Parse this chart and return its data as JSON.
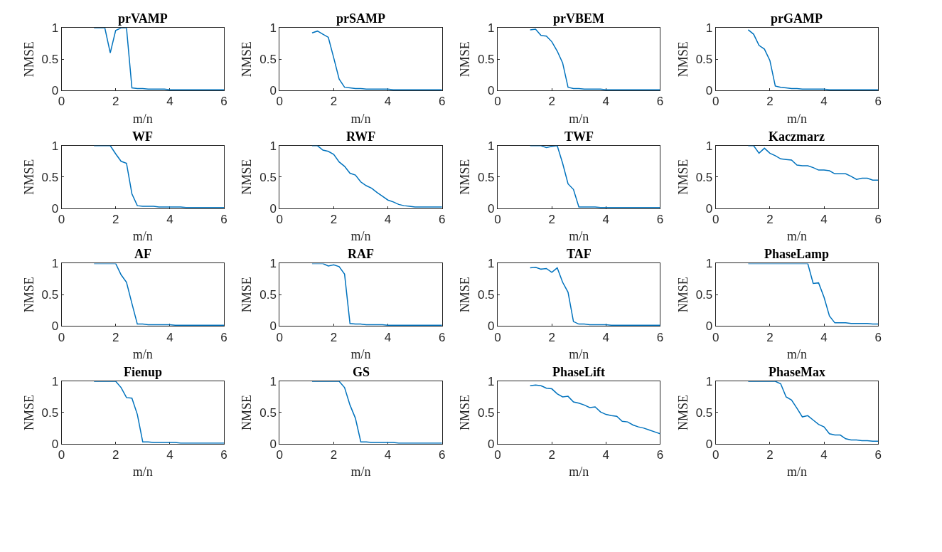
{
  "chart_data": [
    {
      "type": "line",
      "title": "prVAMP",
      "xlabel": "m/n",
      "ylabel": "NMSE",
      "x": [
        1.2,
        1.4,
        1.6,
        1.8,
        2.0,
        2.2,
        2.4,
        2.6,
        2.8,
        3.0,
        3.2,
        3.4,
        3.6,
        3.8,
        4.0,
        4.2,
        4.4,
        4.6,
        4.8,
        5.0,
        5.2,
        5.4,
        5.6,
        5.8,
        6.0
      ],
      "series": [
        {
          "color": "#0072bd",
          "values": [
            1,
            1,
            1,
            0.6,
            0.96,
            1,
            1,
            0.04,
            0.03,
            0.03,
            0.02,
            0.02,
            0.02,
            0.02,
            0.01,
            0.01,
            0.01,
            0.01,
            0.01,
            0.01,
            0.01,
            0.01,
            0.01,
            0.01,
            0.01
          ]
        }
      ],
      "xlim": [
        0,
        6
      ],
      "xticks": [
        0,
        2,
        4,
        6
      ],
      "ylim": [
        0,
        1
      ],
      "yticks": [
        0,
        0.5,
        1
      ]
    },
    {
      "type": "line",
      "title": "prSAMP",
      "xlabel": "m/n",
      "ylabel": "NMSE",
      "x": [
        1.2,
        1.4,
        1.6,
        1.8,
        2.0,
        2.2,
        2.4,
        2.6,
        2.8,
        3.0,
        3.2,
        3.4,
        3.6,
        3.8,
        4.0,
        4.2,
        4.4,
        4.6,
        4.8,
        5.0,
        5.2,
        5.4,
        5.6,
        5.8,
        6.0
      ],
      "series": [
        {
          "color": "#0072bd",
          "values": [
            0.92,
            0.95,
            0.9,
            0.85,
            0.52,
            0.18,
            0.05,
            0.04,
            0.03,
            0.03,
            0.02,
            0.02,
            0.02,
            0.02,
            0.02,
            0.01,
            0.01,
            0.01,
            0.01,
            0.01,
            0.01,
            0.01,
            0.01,
            0.01,
            0.01
          ]
        }
      ],
      "xlim": [
        0,
        6
      ],
      "xticks": [
        0,
        2,
        4,
        6
      ],
      "ylim": [
        0,
        1
      ],
      "yticks": [
        0,
        0.5,
        1
      ]
    },
    {
      "type": "line",
      "title": "prVBEM",
      "xlabel": "m/n",
      "ylabel": "NMSE",
      "x": [
        1.2,
        1.4,
        1.6,
        1.8,
        2.0,
        2.2,
        2.4,
        2.6,
        2.8,
        3.0,
        3.2,
        3.4,
        3.6,
        3.8,
        4.0,
        4.2,
        4.4,
        4.6,
        4.8,
        5.0,
        5.2,
        5.4,
        5.6,
        5.8,
        6.0
      ],
      "series": [
        {
          "color": "#0072bd",
          "values": [
            0.97,
            0.98,
            0.88,
            0.87,
            0.78,
            0.63,
            0.44,
            0.05,
            0.03,
            0.03,
            0.02,
            0.02,
            0.02,
            0.02,
            0.01,
            0.01,
            0.01,
            0.01,
            0.01,
            0.01,
            0.01,
            0.01,
            0.01,
            0.01,
            0.01
          ]
        }
      ],
      "xlim": [
        0,
        6
      ],
      "xticks": [
        0,
        2,
        4,
        6
      ],
      "ylim": [
        0,
        1
      ],
      "yticks": [
        0,
        0.5,
        1
      ]
    },
    {
      "type": "line",
      "title": "prGAMP",
      "xlabel": "m/n",
      "ylabel": "NMSE",
      "x": [
        1.2,
        1.4,
        1.6,
        1.8,
        2.0,
        2.2,
        2.4,
        2.6,
        2.8,
        3.0,
        3.2,
        3.4,
        3.6,
        3.8,
        4.0,
        4.2,
        4.4,
        4.6,
        4.8,
        5.0,
        5.2,
        5.4,
        5.6,
        5.8,
        6.0
      ],
      "series": [
        {
          "color": "#0072bd",
          "values": [
            0.97,
            0.9,
            0.72,
            0.66,
            0.48,
            0.07,
            0.05,
            0.04,
            0.03,
            0.03,
            0.02,
            0.02,
            0.02,
            0.02,
            0.02,
            0.01,
            0.01,
            0.01,
            0.01,
            0.01,
            0.01,
            0.01,
            0.01,
            0.01,
            0.01
          ]
        }
      ],
      "xlim": [
        0,
        6
      ],
      "xticks": [
        0,
        2,
        4,
        6
      ],
      "ylim": [
        0,
        1
      ],
      "yticks": [
        0,
        0.5,
        1
      ]
    },
    {
      "type": "line",
      "title": "WF",
      "xlabel": "m/n",
      "ylabel": "NMSE",
      "x": [
        1.2,
        1.4,
        1.6,
        1.8,
        2.0,
        2.2,
        2.4,
        2.6,
        2.8,
        3.0,
        3.2,
        3.4,
        3.6,
        3.8,
        4.0,
        4.2,
        4.4,
        4.6,
        4.8,
        5.0,
        5.2,
        5.4,
        5.6,
        5.8,
        6.0
      ],
      "series": [
        {
          "color": "#0072bd",
          "values": [
            1,
            1,
            1,
            1,
            0.87,
            0.75,
            0.72,
            0.23,
            0.04,
            0.03,
            0.03,
            0.03,
            0.02,
            0.02,
            0.02,
            0.02,
            0.02,
            0.01,
            0.01,
            0.01,
            0.01,
            0.01,
            0.01,
            0.01,
            0.01
          ]
        }
      ],
      "xlim": [
        0,
        6
      ],
      "xticks": [
        0,
        2,
        4,
        6
      ],
      "ylim": [
        0,
        1
      ],
      "yticks": [
        0,
        0.5,
        1
      ]
    },
    {
      "type": "line",
      "title": "RWF",
      "xlabel": "m/n",
      "ylabel": "NMSE",
      "x": [
        1.2,
        1.4,
        1.6,
        1.8,
        2.0,
        2.2,
        2.4,
        2.6,
        2.8,
        3.0,
        3.2,
        3.4,
        3.6,
        3.8,
        4.0,
        4.2,
        4.4,
        4.6,
        4.8,
        5.0,
        5.2,
        5.4,
        5.6,
        5.8,
        6.0
      ],
      "series": [
        {
          "color": "#0072bd",
          "values": [
            1,
            1,
            0.93,
            0.91,
            0.86,
            0.74,
            0.67,
            0.56,
            0.53,
            0.42,
            0.36,
            0.32,
            0.25,
            0.19,
            0.13,
            0.1,
            0.06,
            0.04,
            0.03,
            0.02,
            0.02,
            0.02,
            0.02,
            0.02,
            0.02
          ]
        }
      ],
      "xlim": [
        0,
        6
      ],
      "xticks": [
        0,
        2,
        4,
        6
      ],
      "ylim": [
        0,
        1
      ],
      "yticks": [
        0,
        0.5,
        1
      ]
    },
    {
      "type": "line",
      "title": "TWF",
      "xlabel": "m/n",
      "ylabel": "NMSE",
      "x": [
        1.2,
        1.4,
        1.6,
        1.8,
        2.0,
        2.2,
        2.4,
        2.6,
        2.8,
        3.0,
        3.2,
        3.4,
        3.6,
        3.8,
        4.0,
        4.2,
        4.4,
        4.6,
        4.8,
        5.0,
        5.2,
        5.4,
        5.6,
        5.8,
        6.0
      ],
      "series": [
        {
          "color": "#0072bd",
          "values": [
            1,
            1,
            1,
            0.97,
            0.99,
            1,
            0.72,
            0.39,
            0.3,
            0.02,
            0.02,
            0.02,
            0.02,
            0.01,
            0.01,
            0.01,
            0.01,
            0.01,
            0.01,
            0.01,
            0.01,
            0.01,
            0.01,
            0.01,
            0.01
          ]
        }
      ],
      "xlim": [
        0,
        6
      ],
      "xticks": [
        0,
        2,
        4,
        6
      ],
      "ylim": [
        0,
        1
      ],
      "yticks": [
        0,
        0.5,
        1
      ]
    },
    {
      "type": "line",
      "title": "Kaczmarz",
      "xlabel": "m/n",
      "ylabel": "NMSE",
      "x": [
        1.2,
        1.4,
        1.6,
        1.8,
        2.0,
        2.2,
        2.4,
        2.6,
        2.8,
        3.0,
        3.2,
        3.4,
        3.6,
        3.8,
        4.0,
        4.2,
        4.4,
        4.6,
        4.8,
        5.0,
        5.2,
        5.4,
        5.6,
        5.8,
        6.0
      ],
      "series": [
        {
          "color": "#0072bd",
          "values": [
            1,
            1,
            0.88,
            0.96,
            0.88,
            0.84,
            0.79,
            0.78,
            0.77,
            0.69,
            0.68,
            0.68,
            0.65,
            0.61,
            0.61,
            0.6,
            0.55,
            0.55,
            0.55,
            0.51,
            0.46,
            0.48,
            0.48,
            0.45,
            0.45
          ]
        }
      ],
      "xlim": [
        0,
        6
      ],
      "xticks": [
        0,
        2,
        4,
        6
      ],
      "ylim": [
        0,
        1
      ],
      "yticks": [
        0,
        0.5,
        1
      ]
    },
    {
      "type": "line",
      "title": "AF",
      "xlabel": "m/n",
      "ylabel": "NMSE",
      "x": [
        1.2,
        1.4,
        1.6,
        1.8,
        2.0,
        2.2,
        2.4,
        2.6,
        2.8,
        3.0,
        3.2,
        3.4,
        3.6,
        3.8,
        4.0,
        4.2,
        4.4,
        4.6,
        4.8,
        5.0,
        5.2,
        5.4,
        5.6,
        5.8,
        6.0
      ],
      "series": [
        {
          "color": "#0072bd",
          "values": [
            1,
            1,
            1,
            1,
            1,
            0.82,
            0.7,
            0.36,
            0.03,
            0.03,
            0.02,
            0.02,
            0.02,
            0.02,
            0.02,
            0.01,
            0.01,
            0.01,
            0.01,
            0.01,
            0.01,
            0.01,
            0.01,
            0.01,
            0.01
          ]
        }
      ],
      "xlim": [
        0,
        6
      ],
      "xticks": [
        0,
        2,
        4,
        6
      ],
      "ylim": [
        0,
        1
      ],
      "yticks": [
        0,
        0.5,
        1
      ]
    },
    {
      "type": "line",
      "title": "RAF",
      "xlabel": "m/n",
      "ylabel": "NMSE",
      "x": [
        1.2,
        1.4,
        1.6,
        1.8,
        2.0,
        2.2,
        2.4,
        2.6,
        2.8,
        3.0,
        3.2,
        3.4,
        3.6,
        3.8,
        4.0,
        4.2,
        4.4,
        4.6,
        4.8,
        5.0,
        5.2,
        5.4,
        5.6,
        5.8,
        6.0
      ],
      "series": [
        {
          "color": "#0072bd",
          "values": [
            1,
            1,
            1,
            0.96,
            0.98,
            0.95,
            0.83,
            0.04,
            0.03,
            0.03,
            0.02,
            0.02,
            0.02,
            0.02,
            0.01,
            0.01,
            0.01,
            0.01,
            0.01,
            0.01,
            0.01,
            0.01,
            0.01,
            0.01,
            0.01
          ]
        }
      ],
      "xlim": [
        0,
        6
      ],
      "xticks": [
        0,
        2,
        4,
        6
      ],
      "ylim": [
        0,
        1
      ],
      "yticks": [
        0,
        0.5,
        1
      ]
    },
    {
      "type": "line",
      "title": "TAF",
      "xlabel": "m/n",
      "ylabel": "NMSE",
      "x": [
        1.2,
        1.4,
        1.6,
        1.8,
        2.0,
        2.2,
        2.4,
        2.6,
        2.8,
        3.0,
        3.2,
        3.4,
        3.6,
        3.8,
        4.0,
        4.2,
        4.4,
        4.6,
        4.8,
        5.0,
        5.2,
        5.4,
        5.6,
        5.8,
        6.0
      ],
      "series": [
        {
          "color": "#0072bd",
          "values": [
            0.93,
            0.94,
            0.91,
            0.92,
            0.86,
            0.93,
            0.7,
            0.54,
            0.07,
            0.03,
            0.03,
            0.02,
            0.02,
            0.02,
            0.02,
            0.01,
            0.01,
            0.01,
            0.01,
            0.01,
            0.01,
            0.01,
            0.01,
            0.01,
            0.01
          ]
        }
      ],
      "xlim": [
        0,
        6
      ],
      "xticks": [
        0,
        2,
        4,
        6
      ],
      "ylim": [
        0,
        1
      ],
      "yticks": [
        0,
        0.5,
        1
      ]
    },
    {
      "type": "line",
      "title": "PhaseLamp",
      "xlabel": "m/n",
      "ylabel": "NMSE",
      "x": [
        1.2,
        1.4,
        1.6,
        1.8,
        2.0,
        2.2,
        2.4,
        2.6,
        2.8,
        3.0,
        3.2,
        3.4,
        3.6,
        3.8,
        4.0,
        4.2,
        4.4,
        4.6,
        4.8,
        5.0,
        5.2,
        5.4,
        5.6,
        5.8,
        6.0
      ],
      "series": [
        {
          "color": "#0072bd",
          "values": [
            1,
            1,
            1,
            1,
            1,
            1,
            1,
            1,
            1,
            1,
            1,
            1,
            0.68,
            0.69,
            0.46,
            0.16,
            0.05,
            0.05,
            0.05,
            0.04,
            0.04,
            0.04,
            0.04,
            0.03,
            0.03
          ]
        }
      ],
      "xlim": [
        0,
        6
      ],
      "xticks": [
        0,
        2,
        4,
        6
      ],
      "ylim": [
        0,
        1
      ],
      "yticks": [
        0,
        0.5,
        1
      ]
    },
    {
      "type": "line",
      "title": "Fienup",
      "xlabel": "m/n",
      "ylabel": "NMSE",
      "x": [
        1.2,
        1.4,
        1.6,
        1.8,
        2.0,
        2.2,
        2.4,
        2.6,
        2.8,
        3.0,
        3.2,
        3.4,
        3.6,
        3.8,
        4.0,
        4.2,
        4.4,
        4.6,
        4.8,
        5.0,
        5.2,
        5.4,
        5.6,
        5.8,
        6.0
      ],
      "series": [
        {
          "color": "#0072bd",
          "values": [
            1,
            1,
            1,
            1,
            1,
            0.9,
            0.74,
            0.73,
            0.47,
            0.03,
            0.03,
            0.02,
            0.02,
            0.02,
            0.02,
            0.02,
            0.01,
            0.01,
            0.01,
            0.01,
            0.01,
            0.01,
            0.01,
            0.01,
            0.01
          ]
        }
      ],
      "xlim": [
        0,
        6
      ],
      "xticks": [
        0,
        2,
        4,
        6
      ],
      "ylim": [
        0,
        1
      ],
      "yticks": [
        0,
        0.5,
        1
      ]
    },
    {
      "type": "line",
      "title": "GS",
      "xlabel": "m/n",
      "ylabel": "NMSE",
      "x": [
        1.2,
        1.4,
        1.6,
        1.8,
        2.0,
        2.2,
        2.4,
        2.6,
        2.8,
        3.0,
        3.2,
        3.4,
        3.6,
        3.8,
        4.0,
        4.2,
        4.4,
        4.6,
        4.8,
        5.0,
        5.2,
        5.4,
        5.6,
        5.8,
        6.0
      ],
      "series": [
        {
          "color": "#0072bd",
          "values": [
            1,
            1,
            1,
            1,
            1,
            1,
            0.9,
            0.62,
            0.41,
            0.03,
            0.03,
            0.02,
            0.02,
            0.02,
            0.02,
            0.02,
            0.01,
            0.01,
            0.01,
            0.01,
            0.01,
            0.01,
            0.01,
            0.01,
            0.01
          ]
        }
      ],
      "xlim": [
        0,
        6
      ],
      "xticks": [
        0,
        2,
        4,
        6
      ],
      "ylim": [
        0,
        1
      ],
      "yticks": [
        0,
        0.5,
        1
      ]
    },
    {
      "type": "line",
      "title": "PhaseLift",
      "xlabel": "m/n",
      "ylabel": "NMSE",
      "x": [
        1.2,
        1.4,
        1.6,
        1.8,
        2.0,
        2.2,
        2.4,
        2.6,
        2.8,
        3.0,
        3.2,
        3.4,
        3.6,
        3.8,
        4.0,
        4.2,
        4.4,
        4.6,
        4.8,
        5.0,
        5.2,
        5.4,
        5.6,
        5.8,
        6.0
      ],
      "series": [
        {
          "color": "#0072bd",
          "values": [
            0.93,
            0.94,
            0.93,
            0.89,
            0.88,
            0.8,
            0.75,
            0.76,
            0.67,
            0.65,
            0.62,
            0.58,
            0.59,
            0.51,
            0.47,
            0.45,
            0.44,
            0.36,
            0.35,
            0.3,
            0.27,
            0.25,
            0.22,
            0.19,
            0.16
          ]
        }
      ],
      "xlim": [
        0,
        6
      ],
      "xticks": [
        0,
        2,
        4,
        6
      ],
      "ylim": [
        0,
        1
      ],
      "yticks": [
        0,
        0.5,
        1
      ]
    },
    {
      "type": "line",
      "title": "PhaseMax",
      "xlabel": "m/n",
      "ylabel": "NMSE",
      "x": [
        1.2,
        1.4,
        1.6,
        1.8,
        2.0,
        2.2,
        2.4,
        2.6,
        2.8,
        3.0,
        3.2,
        3.4,
        3.6,
        3.8,
        4.0,
        4.2,
        4.4,
        4.6,
        4.8,
        5.0,
        5.2,
        5.4,
        5.6,
        5.8,
        6.0
      ],
      "series": [
        {
          "color": "#0072bd",
          "values": [
            1,
            1,
            1,
            1,
            1,
            1,
            0.96,
            0.75,
            0.7,
            0.57,
            0.43,
            0.45,
            0.38,
            0.31,
            0.27,
            0.16,
            0.14,
            0.14,
            0.08,
            0.06,
            0.06,
            0.05,
            0.05,
            0.04,
            0.04
          ]
        }
      ],
      "xlim": [
        0,
        6
      ],
      "xticks": [
        0,
        2,
        4,
        6
      ],
      "ylim": [
        0,
        1
      ],
      "yticks": [
        0,
        0.5,
        1
      ]
    }
  ]
}
